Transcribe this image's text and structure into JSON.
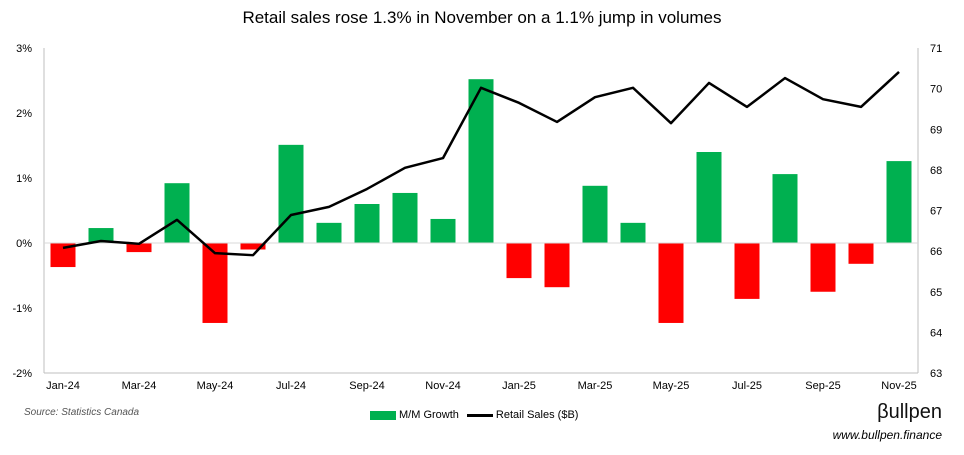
{
  "chart_data": {
    "type": "bar+line",
    "title": "Retail sales rose 1.3% in November on a 1.1% jump in volumes",
    "categories": [
      "Jan-24",
      "Feb-24",
      "Mar-24",
      "Apr-24",
      "May-24",
      "Jun-24",
      "Jul-24",
      "Aug-24",
      "Sep-24",
      "Oct-24",
      "Nov-24",
      "Dec-24",
      "Jan-25",
      "Feb-25",
      "Mar-25",
      "Apr-25",
      "May-25",
      "Jun-25",
      "Jul-25",
      "Aug-25",
      "Sep-25",
      "Oct-25",
      "Nov-25"
    ],
    "x_tick_labels": [
      "Jan-24",
      "Mar-24",
      "May-24",
      "Jul-24",
      "Sep-24",
      "Nov-24",
      "Jan-25",
      "Mar-25",
      "May-25",
      "Jul-25",
      "Sep-25",
      "Nov-25"
    ],
    "series": [
      {
        "name": "M/M Growth",
        "type": "bar",
        "axis": "left",
        "unit": "%",
        "values": [
          -0.37,
          0.23,
          -0.14,
          0.92,
          -1.23,
          -0.1,
          1.51,
          0.31,
          0.6,
          0.77,
          0.37,
          2.52,
          -0.54,
          -0.68,
          0.88,
          0.31,
          -1.23,
          1.4,
          -0.86,
          1.06,
          -0.75,
          -0.32,
          1.26
        ],
        "color_positive": "#00b050",
        "color_negative": "#ff0000"
      },
      {
        "name": "Retail Sales ($B)",
        "type": "line",
        "axis": "right",
        "values": [
          66.08,
          66.25,
          66.18,
          66.77,
          65.95,
          65.9,
          66.89,
          67.09,
          67.53,
          68.05,
          68.29,
          70.02,
          69.65,
          69.18,
          69.79,
          70.02,
          69.15,
          70.14,
          69.55,
          70.26,
          69.74,
          69.55,
          70.41
        ],
        "color": "#000000"
      }
    ],
    "y_left": {
      "ylim": [
        -2,
        3
      ],
      "ticks": [
        "3%",
        "2%",
        "1%",
        "0%",
        "-1%",
        "-2%"
      ],
      "values": [
        3,
        2,
        1,
        0,
        -1,
        -2
      ]
    },
    "y_right": {
      "ylim": [
        63,
        71
      ],
      "ticks": [
        "71",
        "70",
        "69",
        "68",
        "67",
        "66",
        "65",
        "64",
        "63"
      ],
      "values": [
        71,
        70,
        69,
        68,
        67,
        66,
        65,
        64,
        63
      ]
    },
    "legend": "bottom-center",
    "grid": false
  },
  "source": "Source: Statistics Canada",
  "brand": "βullpen",
  "url": "www.bullpen.finance"
}
